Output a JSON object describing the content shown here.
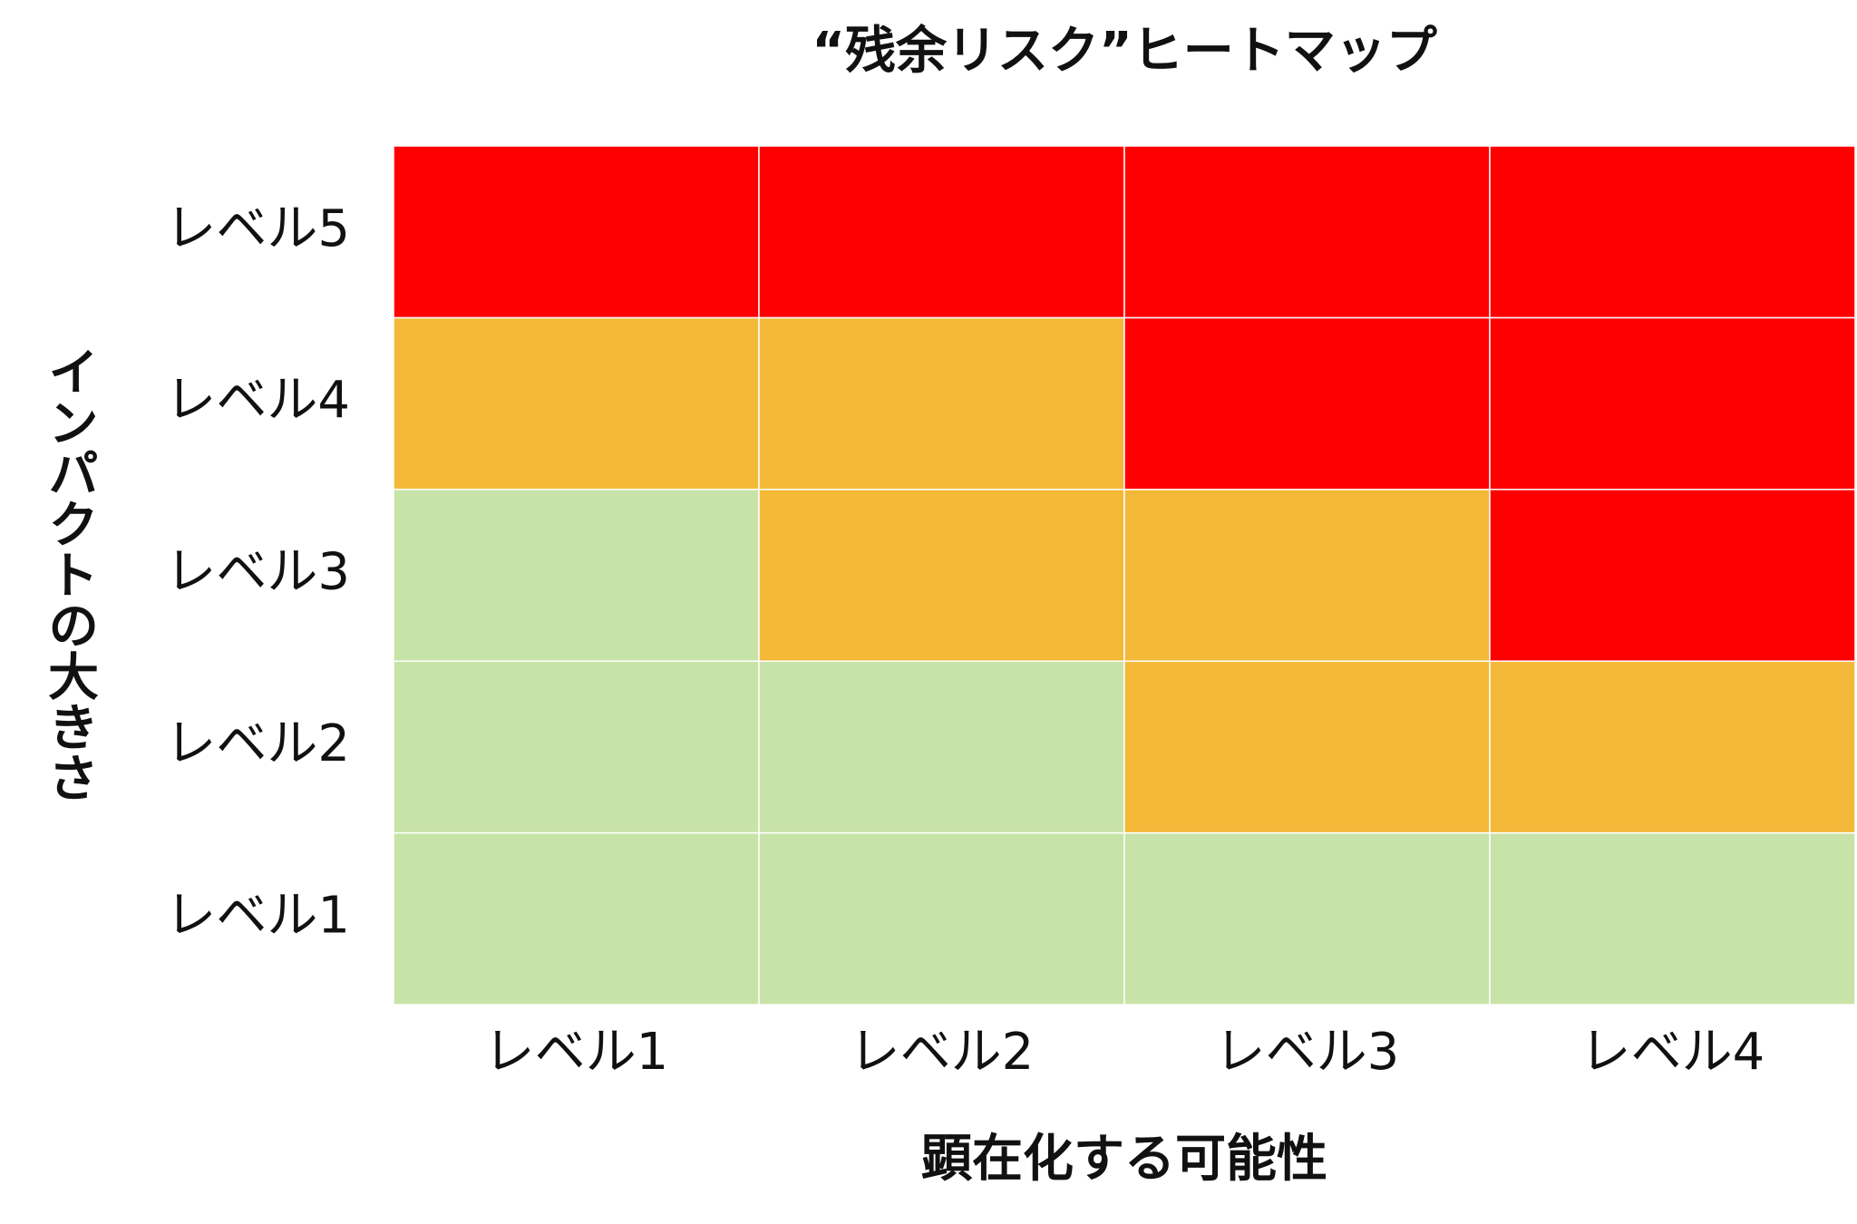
{
  "chart_data": {
    "type": "heatmap",
    "title": "“残余リスク”ヒートマップ",
    "x_label": "顕在化する可能性",
    "y_label": "インパクトの大きさ",
    "x_categories": [
      "レベル1",
      "レベル2",
      "レベル3",
      "レベル4"
    ],
    "y_categories": [
      "レベル1",
      "レベル2",
      "レベル3",
      "レベル4",
      "レベル5"
    ],
    "cell_colors": [
      [
        "#c8e3a8",
        "#c8e3a8",
        "#c8e3a8",
        "#c8e3a8"
      ],
      [
        "#c8e3a8",
        "#c8e3a8",
        "#f4b938",
        "#f4b938"
      ],
      [
        "#c8e3a8",
        "#f4b938",
        "#f4b938",
        "#ff0000"
      ],
      [
        "#f4b938",
        "#f4b938",
        "#ff0000",
        "#ff0000"
      ],
      [
        "#ff0000",
        "#ff0000",
        "#ff0000",
        "#ff0000"
      ]
    ]
  }
}
